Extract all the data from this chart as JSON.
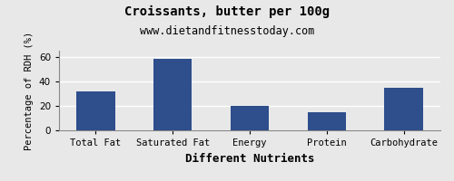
{
  "title": "Croissants, butter per 100g",
  "subtitle": "www.dietandfitnesstoday.com",
  "xlabel": "Different Nutrients",
  "ylabel": "Percentage of RDH (%)",
  "categories": [
    "Total Fat",
    "Saturated Fat",
    "Energy",
    "Protein",
    "Carbohydrate"
  ],
  "values": [
    32,
    58,
    20,
    15,
    35
  ],
  "bar_color": "#2e4e8c",
  "ylim": [
    0,
    65
  ],
  "yticks": [
    0,
    20,
    40,
    60
  ],
  "title_fontsize": 10,
  "subtitle_fontsize": 8.5,
  "xlabel_fontsize": 9,
  "ylabel_fontsize": 7.5,
  "tick_fontsize": 7.5,
  "background_color": "#e8e8e8",
  "plot_bg_color": "#e8e8e8",
  "grid_color": "#ffffff",
  "bar_width": 0.5
}
